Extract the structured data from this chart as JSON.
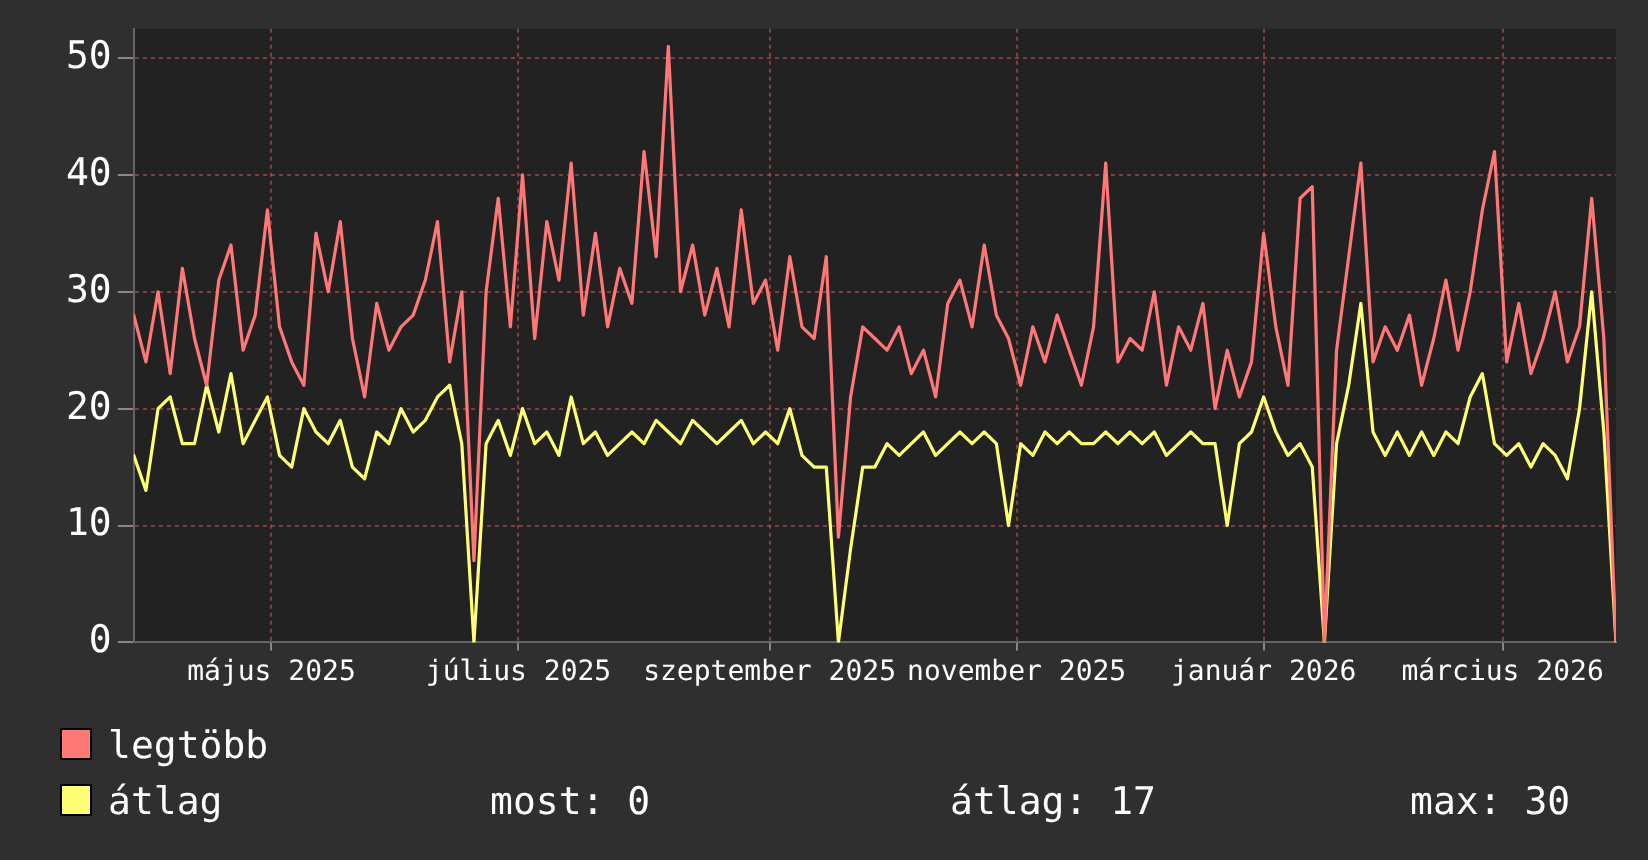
{
  "chart_data": {
    "type": "line",
    "x": [
      "2025-03-28",
      "2025-03-31",
      "2025-04-03",
      "2025-04-06",
      "2025-04-09",
      "2025-04-12",
      "2025-04-15",
      "2025-04-18",
      "2025-04-21",
      "2025-04-24",
      "2025-04-27",
      "2025-04-30",
      "2025-05-03",
      "2025-05-06",
      "2025-05-09",
      "2025-05-12",
      "2025-05-15",
      "2025-05-18",
      "2025-05-21",
      "2025-05-24",
      "2025-05-27",
      "2025-05-30",
      "2025-06-02",
      "2025-06-05",
      "2025-06-08",
      "2025-06-11",
      "2025-06-14",
      "2025-06-17",
      "2025-06-20",
      "2025-06-23",
      "2025-06-26",
      "2025-06-29",
      "2025-07-02",
      "2025-07-05",
      "2025-07-08",
      "2025-07-11",
      "2025-07-14",
      "2025-07-17",
      "2025-07-20",
      "2025-07-23",
      "2025-07-26",
      "2025-07-29",
      "2025-08-01",
      "2025-08-04",
      "2025-08-07",
      "2025-08-10",
      "2025-08-13",
      "2025-08-16",
      "2025-08-19",
      "2025-08-22",
      "2025-08-25",
      "2025-08-28",
      "2025-08-31",
      "2025-09-03",
      "2025-09-06",
      "2025-09-09",
      "2025-09-12",
      "2025-09-15",
      "2025-09-18",
      "2025-09-21",
      "2025-09-24",
      "2025-09-27",
      "2025-09-30",
      "2025-10-03",
      "2025-10-06",
      "2025-10-09",
      "2025-10-12",
      "2025-10-15",
      "2025-10-18",
      "2025-10-21",
      "2025-10-24",
      "2025-10-27",
      "2025-10-30",
      "2025-11-02",
      "2025-11-05",
      "2025-11-08",
      "2025-11-11",
      "2025-11-14",
      "2025-11-17",
      "2025-11-20",
      "2025-11-23",
      "2025-11-26",
      "2025-11-29",
      "2025-12-02",
      "2025-12-05",
      "2025-12-08",
      "2025-12-11",
      "2025-12-14",
      "2025-12-17",
      "2025-12-20",
      "2025-12-23",
      "2025-12-26",
      "2025-12-29",
      "2026-01-01",
      "2026-01-04",
      "2026-01-07",
      "2026-01-10",
      "2026-01-13",
      "2026-01-16",
      "2026-01-19",
      "2026-01-22",
      "2026-01-25",
      "2026-01-28",
      "2026-01-31",
      "2026-02-03",
      "2026-02-06",
      "2026-02-09",
      "2026-02-12",
      "2026-02-15",
      "2026-02-18",
      "2026-02-21",
      "2026-02-24",
      "2026-02-27",
      "2026-03-02",
      "2026-03-05",
      "2026-03-08",
      "2026-03-11",
      "2026-03-14",
      "2026-03-17",
      "2026-03-20",
      "2026-03-23",
      "2026-03-26",
      "2026-03-29"
    ],
    "series": [
      {
        "name": "legtöbb",
        "color": "#ff7777",
        "values": [
          28,
          24,
          30,
          23,
          32,
          26,
          22,
          31,
          34,
          25,
          28,
          37,
          27,
          24,
          22,
          35,
          30,
          36,
          26,
          21,
          29,
          25,
          27,
          28,
          31,
          36,
          24,
          30,
          7,
          30,
          38,
          27,
          40,
          26,
          36,
          31,
          41,
          28,
          35,
          27,
          32,
          29,
          42,
          33,
          51,
          30,
          34,
          28,
          32,
          27,
          37,
          29,
          31,
          25,
          33,
          27,
          26,
          33,
          9,
          21,
          27,
          26,
          25,
          27,
          23,
          25,
          21,
          29,
          31,
          27,
          34,
          28,
          26,
          22,
          27,
          24,
          28,
          25,
          22,
          27,
          41,
          24,
          26,
          25,
          30,
          22,
          27,
          25,
          29,
          20,
          25,
          21,
          24,
          35,
          27,
          22,
          38,
          39,
          0,
          25,
          33,
          41,
          24,
          27,
          25,
          28,
          22,
          26,
          31,
          25,
          30,
          37,
          42,
          24,
          29,
          23,
          26,
          30,
          24,
          27,
          38,
          26,
          0
        ]
      },
      {
        "name": "átlag",
        "color": "#ffff77",
        "values": [
          16,
          13,
          20,
          21,
          17,
          17,
          22,
          18,
          23,
          17,
          19,
          21,
          16,
          15,
          20,
          18,
          17,
          19,
          15,
          14,
          18,
          17,
          20,
          18,
          19,
          21,
          22,
          17,
          0,
          17,
          19,
          16,
          20,
          17,
          18,
          16,
          21,
          17,
          18,
          16,
          17,
          18,
          17,
          19,
          18,
          17,
          19,
          18,
          17,
          18,
          19,
          17,
          18,
          17,
          20,
          16,
          15,
          15,
          0,
          8,
          15,
          15,
          17,
          16,
          17,
          18,
          16,
          17,
          18,
          17,
          18,
          17,
          10,
          17,
          16,
          18,
          17,
          18,
          17,
          17,
          18,
          17,
          18,
          17,
          18,
          16,
          17,
          18,
          17,
          17,
          10,
          17,
          18,
          21,
          18,
          16,
          17,
          15,
          0,
          17,
          22,
          29,
          18,
          16,
          18,
          16,
          18,
          16,
          18,
          17,
          21,
          23,
          17,
          16,
          17,
          15,
          17,
          16,
          14,
          20,
          30,
          18,
          0
        ]
      }
    ],
    "xlim": [
      "2025-03-28",
      "2026-03-29"
    ],
    "xticks": [
      {
        "value": "2025-05-01",
        "label": "május 2025"
      },
      {
        "value": "2025-07-01",
        "label": "július 2025"
      },
      {
        "value": "2025-09-01",
        "label": "szeptember 2025"
      },
      {
        "value": "2025-11-01",
        "label": "november 2025"
      },
      {
        "value": "2026-01-01",
        "label": "január 2026"
      },
      {
        "value": "2026-03-01",
        "label": "március 2026"
      }
    ],
    "ylim": [
      0,
      52.5
    ],
    "yticks": [
      0,
      10,
      20,
      30,
      40,
      50
    ],
    "grid": true,
    "legend": "bottom",
    "marker": "none",
    "line_style": "solid",
    "annotations": [
      "most: 0",
      "átlag: 17",
      "max: 30"
    ]
  }
}
